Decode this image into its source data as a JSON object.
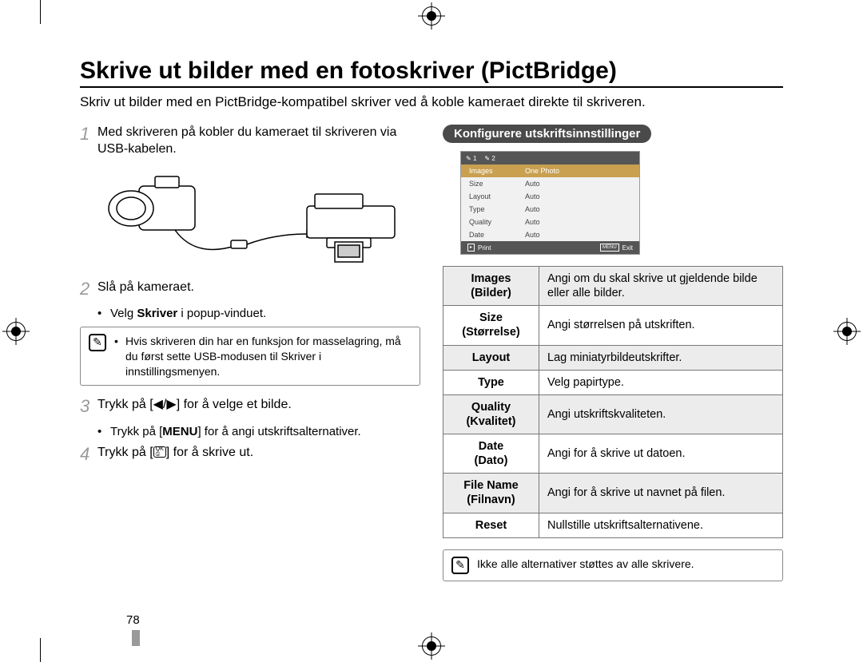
{
  "title": "Skrive ut bilder med en fotoskriver (PictBridge)",
  "intro": "Skriv ut bilder med en PictBridge-kompatibel skriver ved å koble kameraet direkte til skriveren.",
  "steps": {
    "s1": "Med skriveren på kobler du kameraet til skriveren via USB-kabelen.",
    "s2": "Slå på kameraet.",
    "s2_bullet_pre": "Velg ",
    "s2_bullet_bold": "Skriver",
    "s2_bullet_post": " i popup-vinduet.",
    "s3": "Trykk på [◀/▶] for å velge et bilde.",
    "s3_bullet_pre": "Trykk på [",
    "s3_bullet_bold": "MENU",
    "s3_bullet_post": "] for å angi utskriftsalternativer.",
    "s4_pre": "Trykk på [",
    "s4_post": "] for å skrive ut."
  },
  "note_left": "Hvis skriveren din har en funksjon for masselagring, må du først sette USB-modusen til Skriver i innstillingsmenyen.",
  "right_heading": "Konfigurere utskriftsinnstillinger",
  "screen": {
    "tab1": "1",
    "tab2": "2",
    "rows": [
      {
        "l": "Images",
        "r": "One Photo",
        "hl": true
      },
      {
        "l": "Size",
        "r": "Auto"
      },
      {
        "l": "Layout",
        "r": "Auto"
      },
      {
        "l": "Type",
        "r": "Auto"
      },
      {
        "l": "Quality",
        "r": "Auto"
      },
      {
        "l": "Date",
        "r": "Auto"
      }
    ],
    "foot_left_label": "Print",
    "foot_right_box": "MENU",
    "foot_right_label": "Exit"
  },
  "defs": [
    {
      "k": "Images\n(Bilder)",
      "v": "Angi om du skal skrive ut gjeldende bilde eller alle bilder."
    },
    {
      "k": "Size\n(Størrelse)",
      "v": "Angi størrelsen på utskriften."
    },
    {
      "k": "Layout",
      "v": "Lag miniatyrbildeutskrifter."
    },
    {
      "k": "Type",
      "v": "Velg papirtype."
    },
    {
      "k": "Quality\n(Kvalitet)",
      "v": "Angi utskriftskvaliteten."
    },
    {
      "k": "Date\n(Dato)",
      "v": "Angi for å skrive ut datoen."
    },
    {
      "k": "File Name\n(Filnavn)",
      "v": "Angi for å skrive ut navnet på filen."
    },
    {
      "k": "Reset",
      "v": "Nullstille utskriftsalternativene."
    }
  ],
  "note_right": "Ikke alle alternativer støttes av alle skrivere.",
  "page_number": "78",
  "ok_print_icon": "OK",
  "colors": {
    "accent_gray": "#9a9a9a",
    "pill_bg": "#4a4a4a",
    "table_alt": "#ececec",
    "screen_hl": "#c8a050"
  }
}
